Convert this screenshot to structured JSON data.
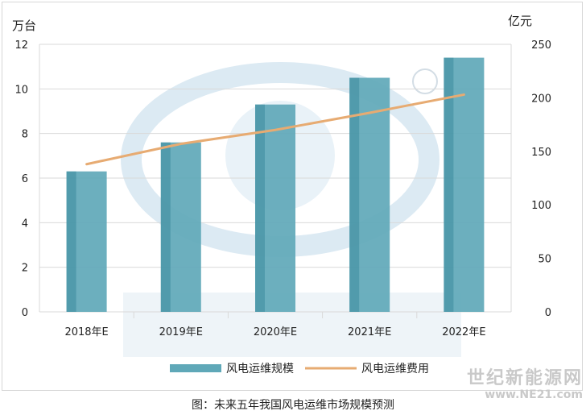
{
  "chart_data": {
    "type": "bar",
    "categories": [
      "2018年E",
      "2019年E",
      "2020年E",
      "2021年E",
      "2022年E"
    ],
    "series": [
      {
        "name": "风电运维规模",
        "type": "bar",
        "axis": "left",
        "values": [
          6.3,
          7.6,
          9.3,
          10.5,
          11.4
        ]
      },
      {
        "name": "风电运维费用",
        "type": "line",
        "axis": "right",
        "values": [
          138,
          157,
          170,
          186,
          203
        ]
      }
    ],
    "y_left": {
      "unit": "万台",
      "ylim": [
        0,
        12
      ],
      "ticks": [
        0,
        2,
        4,
        6,
        8,
        10,
        12
      ]
    },
    "y_right": {
      "unit": "亿元",
      "ylim": [
        0,
        250
      ],
      "ticks": [
        0,
        50,
        100,
        150,
        200,
        250
      ]
    },
    "grid": true,
    "legend_position": "bottom",
    "colors": {
      "bar": "#5fa8b8",
      "bar_dark": "#3d8a9c",
      "line": "#e7ab72",
      "grid": "#d9d9d9"
    }
  },
  "caption": "图：未来五年我国风电运维市场规模预测",
  "watermark": {
    "name": "世纪新能源网",
    "url": "www.NE21.com"
  }
}
